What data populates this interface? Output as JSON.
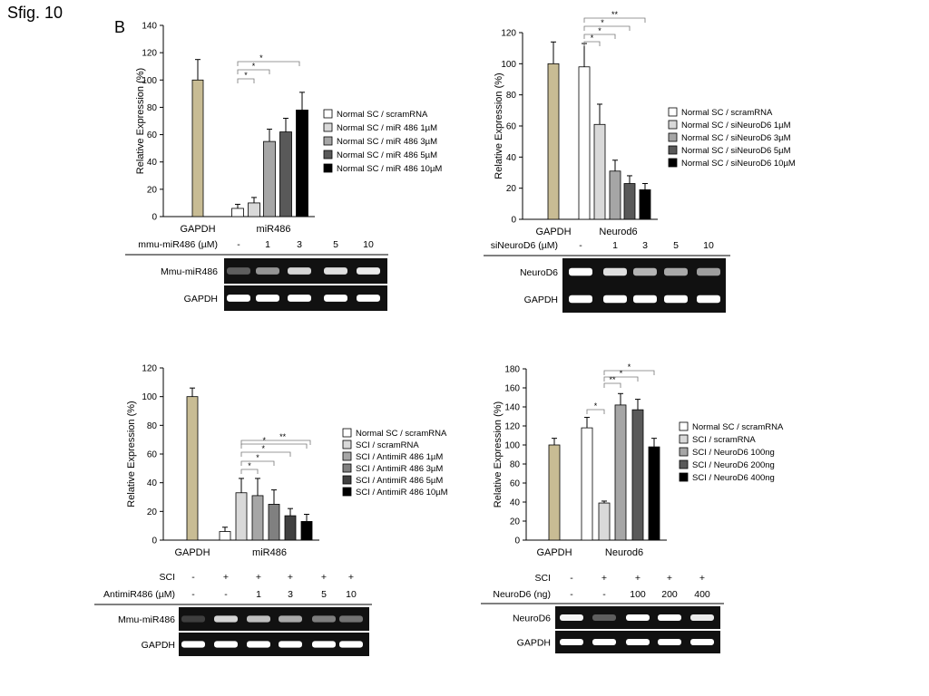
{
  "figure_title": "Sfig. 10",
  "panel_letter": "B",
  "colors": {
    "gapdh_bar": "#c8bc94",
    "bar_outline": "#000000",
    "gel_background": "#111111",
    "band": "#f4f4f4"
  },
  "chart_data": [
    {
      "type": "bar",
      "ylabel": "Relative Expression (%)",
      "ylim": [
        0,
        140
      ],
      "yticks": [
        0,
        20,
        40,
        60,
        80,
        100,
        120,
        140
      ],
      "groups": [
        "GAPDH",
        "miR486"
      ],
      "bars": [
        {
          "group": "GAPDH",
          "value": 100,
          "error": 15,
          "color": "#c8bc94"
        },
        {
          "group": "miR486",
          "series": "Normal SC / scramRNA",
          "value": 6,
          "error": 3,
          "color": "#ffffff"
        },
        {
          "group": "miR486",
          "series": "Normal SC / miR 486 1µM",
          "value": 10,
          "error": 4,
          "color": "#d9d9d9"
        },
        {
          "group": "miR486",
          "series": "Normal SC / miR 486 3µM",
          "value": 55,
          "error": 9,
          "color": "#a6a6a6"
        },
        {
          "group": "miR486",
          "series": "Normal SC / miR 486 5µM",
          "value": 62,
          "error": 10,
          "color": "#595959"
        },
        {
          "group": "miR486",
          "series": "Normal SC / miR 486 10µM",
          "value": 78,
          "error": 13,
          "color": "#000000"
        }
      ],
      "legend": [
        "Normal SC / scramRNA",
        "Normal SC / miR 486 1µM",
        "Normal SC / miR 486 3µM",
        "Normal SC / miR 486 5µM",
        "Normal SC / miR 486 10µM"
      ],
      "significance": [
        "*",
        "*",
        "*"
      ],
      "gel": {
        "header_rows": [
          {
            "label": "mmu-miR486 (µM)",
            "values": [
              "-",
              "1",
              "3",
              "5",
              "10"
            ]
          }
        ],
        "rows": [
          {
            "label": "Mmu-miR486",
            "intensity": [
              0.25,
              0.5,
              0.8,
              0.85,
              0.9
            ]
          },
          {
            "label": "GAPDH",
            "intensity": [
              1,
              1,
              1,
              1,
              1
            ]
          }
        ]
      }
    },
    {
      "type": "bar",
      "ylabel": "Relative Expression (%)",
      "ylim": [
        0,
        120
      ],
      "yticks": [
        0,
        20,
        40,
        60,
        80,
        100,
        120
      ],
      "groups": [
        "GAPDH",
        "Neurod6"
      ],
      "bars": [
        {
          "group": "GAPDH",
          "value": 100,
          "error": 14,
          "color": "#c8bc94"
        },
        {
          "group": "Neurod6",
          "series": "Normal SC / scramRNA",
          "value": 98,
          "error": 15,
          "color": "#ffffff"
        },
        {
          "group": "Neurod6",
          "series": "Normal SC / siNeuroD6 1µM",
          "value": 61,
          "error": 13,
          "color": "#d9d9d9"
        },
        {
          "group": "Neurod6",
          "series": "Normal SC / siNeuroD6 3µM",
          "value": 31,
          "error": 7,
          "color": "#a6a6a6"
        },
        {
          "group": "Neurod6",
          "series": "Normal SC / siNeuroD6 5µM",
          "value": 23,
          "error": 5,
          "color": "#595959"
        },
        {
          "group": "Neurod6",
          "series": "Normal SC / siNeuroD6 10µM",
          "value": 19,
          "error": 4,
          "color": "#000000"
        }
      ],
      "legend": [
        "Normal SC / scramRNA",
        "Normal SC / siNeuroD6 1µM",
        "Normal SC / siNeuroD6 3µM",
        "Normal SC / siNeuroD6 5µM",
        "Normal SC / siNeuroD6 10µM"
      ],
      "significance": [
        "*",
        "*",
        "*",
        "**"
      ],
      "gel": {
        "header_rows": [
          {
            "label": "siNeuroD6 (µM)",
            "values": [
              "-",
              "1",
              "3",
              "5",
              "10"
            ]
          }
        ],
        "rows": [
          {
            "label": "NeuroD6",
            "intensity": [
              1,
              0.85,
              0.65,
              0.6,
              0.55
            ]
          },
          {
            "label": "GAPDH",
            "intensity": [
              1,
              1,
              1,
              1,
              1
            ]
          }
        ]
      }
    },
    {
      "type": "bar",
      "ylabel": "Relative Expression (%)",
      "ylim": [
        0,
        120
      ],
      "yticks": [
        0,
        20,
        40,
        60,
        80,
        100,
        120
      ],
      "groups": [
        "GAPDH",
        "miR486"
      ],
      "bars": [
        {
          "group": "GAPDH",
          "value": 100,
          "error": 6,
          "color": "#c8bc94"
        },
        {
          "group": "miR486",
          "series": "Normal SC / scramRNA",
          "value": 6,
          "error": 3,
          "color": "#ffffff"
        },
        {
          "group": "miR486",
          "series": "SCI / scramRNA",
          "value": 33,
          "error": 10,
          "color": "#d9d9d9"
        },
        {
          "group": "miR486",
          "series": "SCI / AntimiR 486 1µM",
          "value": 31,
          "error": 12,
          "color": "#a6a6a6"
        },
        {
          "group": "miR486",
          "series": "SCI / AntimiR 486 3µM",
          "value": 25,
          "error": 10,
          "color": "#808080"
        },
        {
          "group": "miR486",
          "series": "SCI / AntimiR 486 5µM",
          "value": 17,
          "error": 5,
          "color": "#404040"
        },
        {
          "group": "miR486",
          "series": "SCI / AntimiR 486 10µM",
          "value": 13,
          "error": 5,
          "color": "#000000"
        }
      ],
      "legend": [
        "Normal SC / scramRNA",
        "SCI / scramRNA",
        "SCI / AntimiR 486 1µM",
        "SCI / AntimiR 486 3µM",
        "SCI / AntimiR 486 5µM",
        "SCI / AntimiR 486 10µM"
      ],
      "significance": [
        "*",
        "*",
        "*",
        "*",
        "**"
      ],
      "gel": {
        "header_rows": [
          {
            "label": "SCI",
            "values": [
              "-",
              "+",
              "+",
              "+",
              "+",
              "+"
            ]
          },
          {
            "label": "AntimiR486 (µM)",
            "values": [
              "-",
              "-",
              "1",
              "3",
              "5",
              "10"
            ]
          }
        ],
        "rows": [
          {
            "label": "Mmu-miR486",
            "intensity": [
              0.1,
              0.8,
              0.7,
              0.6,
              0.4,
              0.35
            ]
          },
          {
            "label": "GAPDH",
            "intensity": [
              1,
              1,
              1,
              1,
              1,
              1
            ]
          }
        ]
      }
    },
    {
      "type": "bar",
      "ylabel": "Relative Expression (%)",
      "ylim": [
        0,
        180
      ],
      "yticks": [
        0,
        20,
        40,
        60,
        80,
        100,
        120,
        140,
        160,
        180
      ],
      "groups": [
        "GAPDH",
        "Neurod6"
      ],
      "bars": [
        {
          "group": "GAPDH",
          "value": 100,
          "error": 7,
          "color": "#c8bc94"
        },
        {
          "group": "Neurod6",
          "series": "Normal SC / scramRNA",
          "value": 118,
          "error": 11,
          "color": "#ffffff"
        },
        {
          "group": "Neurod6",
          "series": "SCI / scramRNA",
          "value": 39,
          "error": 2,
          "color": "#d9d9d9"
        },
        {
          "group": "Neurod6",
          "series": "SCI / NeuroD6 100ng",
          "value": 142,
          "error": 12,
          "color": "#a6a6a6"
        },
        {
          "group": "Neurod6",
          "series": "SCI / NeuroD6 200ng",
          "value": 137,
          "error": 11,
          "color": "#595959"
        },
        {
          "group": "Neurod6",
          "series": "SCI / NeuroD6 400ng",
          "value": 98,
          "error": 9,
          "color": "#000000"
        }
      ],
      "legend": [
        "Normal SC / scramRNA",
        "SCI / scramRNA",
        "SCI / NeuroD6 100ng",
        "SCI / NeuroD6 200ng",
        "SCI / NeuroD6 400ng"
      ],
      "significance": [
        "*",
        "**",
        "*",
        "*"
      ],
      "gel": {
        "header_rows": [
          {
            "label": "SCI",
            "values": [
              "-",
              "+",
              "+",
              "+",
              "+"
            ]
          },
          {
            "label": "NeuroD6 (ng)",
            "values": [
              "-",
              "-",
              "100",
              "200",
              "400"
            ]
          }
        ],
        "rows": [
          {
            "label": "NeuroD6",
            "intensity": [
              0.95,
              0.25,
              1,
              1,
              0.9
            ]
          },
          {
            "label": "GAPDH",
            "intensity": [
              1,
              1,
              1,
              1,
              1
            ]
          }
        ]
      }
    }
  ]
}
